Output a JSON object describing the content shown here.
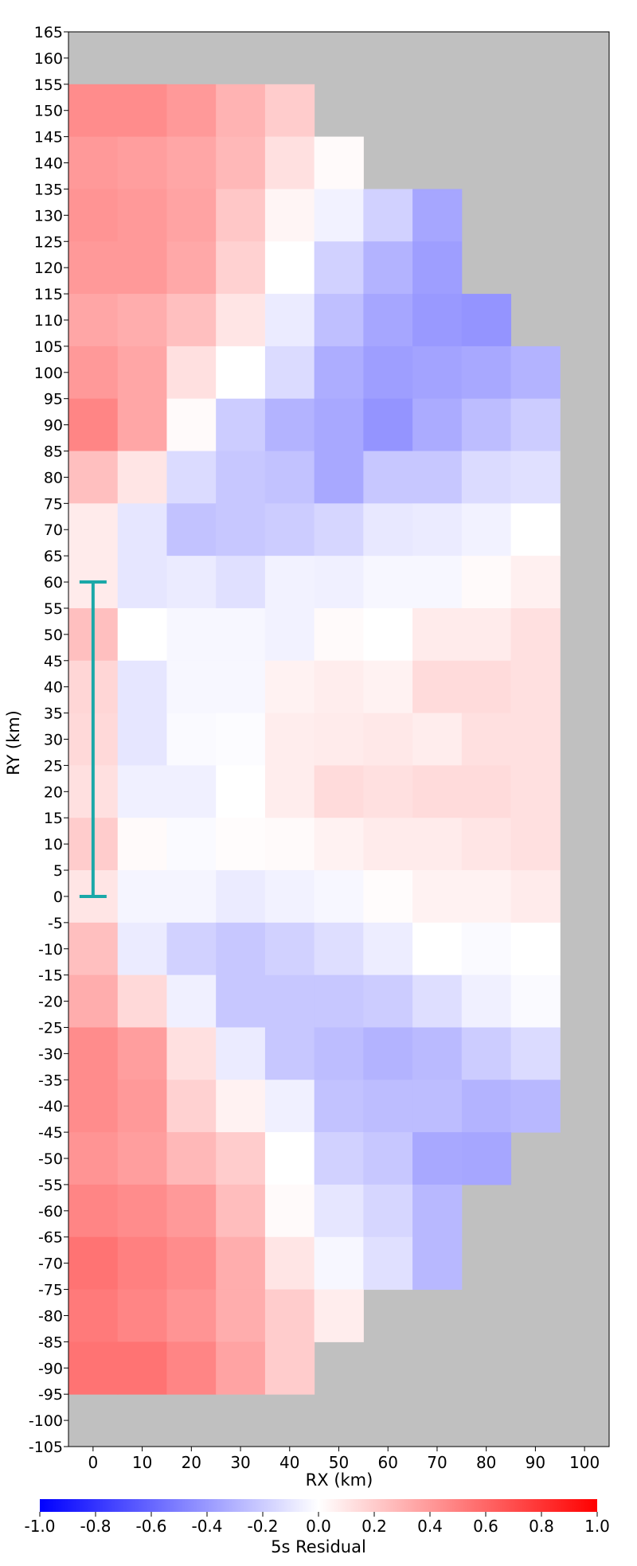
{
  "chart_data": {
    "type": "heatmap",
    "title": "",
    "xlabel": "RX (km)",
    "ylabel": "RY (km)",
    "colorbar_label": "5s Residual",
    "x_ticks": [
      "0",
      "10",
      "20",
      "30",
      "40",
      "50",
      "60",
      "70",
      "80",
      "90",
      "100"
    ],
    "y_ticks": [
      "165",
      "160",
      "155",
      "150",
      "145",
      "140",
      "135",
      "130",
      "125",
      "120",
      "115",
      "110",
      "105",
      "100",
      "95",
      "90",
      "85",
      "80",
      "75",
      "70",
      "65",
      "60",
      "55",
      "50",
      "45",
      "40",
      "35",
      "30",
      "25",
      "20",
      "15",
      "10",
      "5",
      "0",
      "-5",
      "-10",
      "-15",
      "-20",
      "-25",
      "-30",
      "-35",
      "-40",
      "-45",
      "-50",
      "-55",
      "-60",
      "-65",
      "-70",
      "-75",
      "-80",
      "-85",
      "-90",
      "-95",
      "-100",
      "-105"
    ],
    "colorbar_ticks": [
      "-1.0",
      "-0.8",
      "-0.6",
      "-0.4",
      "-0.2",
      "0.0",
      "0.2",
      "0.4",
      "0.6",
      "0.8",
      "1.0"
    ],
    "xlim": [
      -5,
      105
    ],
    "ylim": [
      -105,
      165
    ],
    "clim": [
      -1.0,
      1.0
    ],
    "colormap": "bwr",
    "colors": {
      "background": "#c0c0c0",
      "min": "#0000ff",
      "mid": "#ffffff",
      "max": "#ff0000",
      "marker": "#1aa8a8"
    },
    "cell_size_km": 10,
    "x_centers": [
      0,
      10,
      20,
      30,
      40,
      50,
      60,
      70,
      80,
      90
    ],
    "y_centers": [
      150,
      140,
      130,
      120,
      110,
      100,
      90,
      80,
      70,
      60,
      50,
      40,
      30,
      20,
      10,
      0,
      -10,
      -20,
      -30,
      -40,
      -50,
      -60,
      -70,
      -80,
      -90
    ],
    "values": [
      [
        0.45,
        0.45,
        0.4,
        0.3,
        0.2,
        null,
        null,
        null,
        null,
        null
      ],
      [
        0.4,
        0.38,
        0.35,
        0.28,
        0.12,
        0.02,
        null,
        null,
        null,
        null
      ],
      [
        0.42,
        0.4,
        0.36,
        0.22,
        0.04,
        -0.05,
        -0.18,
        -0.35,
        null,
        null
      ],
      [
        0.4,
        0.4,
        0.34,
        0.18,
        0.0,
        -0.18,
        -0.3,
        -0.38,
        null,
        null
      ],
      [
        0.35,
        0.32,
        0.25,
        0.1,
        -0.08,
        -0.25,
        -0.35,
        -0.4,
        -0.42,
        null
      ],
      [
        0.4,
        0.35,
        0.12,
        0.0,
        -0.14,
        -0.32,
        -0.38,
        -0.36,
        -0.34,
        -0.3
      ],
      [
        0.48,
        0.35,
        0.02,
        -0.2,
        -0.3,
        -0.34,
        -0.42,
        -0.33,
        -0.26,
        -0.2
      ],
      [
        0.25,
        0.1,
        -0.14,
        -0.22,
        -0.24,
        -0.34,
        -0.22,
        -0.22,
        -0.14,
        -0.12
      ],
      [
        0.08,
        -0.1,
        -0.24,
        -0.22,
        -0.2,
        -0.16,
        -0.09,
        -0.08,
        -0.05,
        0.0
      ],
      [
        0.08,
        -0.1,
        -0.08,
        -0.12,
        -0.05,
        -0.06,
        -0.03,
        -0.03,
        0.02,
        0.06
      ],
      [
        0.25,
        0.0,
        -0.03,
        -0.03,
        -0.05,
        0.02,
        0.0,
        0.08,
        0.08,
        0.12
      ],
      [
        0.16,
        -0.1,
        -0.03,
        -0.03,
        0.05,
        0.07,
        0.05,
        0.14,
        0.14,
        0.12
      ],
      [
        0.15,
        -0.1,
        -0.02,
        -0.01,
        0.07,
        0.08,
        0.09,
        0.07,
        0.12,
        0.12
      ],
      [
        0.12,
        -0.06,
        -0.06,
        0.0,
        0.07,
        0.14,
        0.12,
        0.14,
        0.14,
        0.12
      ],
      [
        0.2,
        0.02,
        -0.02,
        0.01,
        0.02,
        0.05,
        0.08,
        0.08,
        0.1,
        0.12
      ],
      [
        0.1,
        -0.04,
        -0.04,
        -0.08,
        -0.05,
        -0.03,
        0.01,
        0.05,
        0.05,
        0.08
      ],
      [
        0.25,
        -0.08,
        -0.18,
        -0.22,
        -0.18,
        -0.13,
        -0.07,
        0.0,
        -0.02,
        0.0
      ],
      [
        0.32,
        0.15,
        -0.06,
        -0.22,
        -0.22,
        -0.22,
        -0.2,
        -0.13,
        -0.06,
        -0.02
      ],
      [
        0.45,
        0.38,
        0.12,
        -0.08,
        -0.22,
        -0.26,
        -0.3,
        -0.27,
        -0.2,
        -0.14
      ],
      [
        0.45,
        0.4,
        0.18,
        0.05,
        -0.06,
        -0.24,
        -0.26,
        -0.26,
        -0.3,
        -0.28
      ],
      [
        0.42,
        0.38,
        0.28,
        0.2,
        0.0,
        -0.18,
        -0.22,
        -0.34,
        -0.35,
        null
      ],
      [
        0.48,
        0.45,
        0.4,
        0.26,
        0.02,
        -0.1,
        -0.16,
        -0.28,
        null,
        null
      ],
      [
        0.55,
        0.5,
        0.45,
        0.32,
        0.1,
        -0.03,
        -0.12,
        -0.28,
        null,
        null
      ],
      [
        0.52,
        0.48,
        0.42,
        0.32,
        0.2,
        0.07,
        null,
        null,
        null,
        null
      ],
      [
        0.55,
        0.55,
        0.48,
        0.36,
        0.2,
        null,
        null,
        null,
        null,
        null
      ]
    ],
    "errorbar": {
      "x": 0,
      "y_min": 0,
      "y_max": 60
    }
  }
}
